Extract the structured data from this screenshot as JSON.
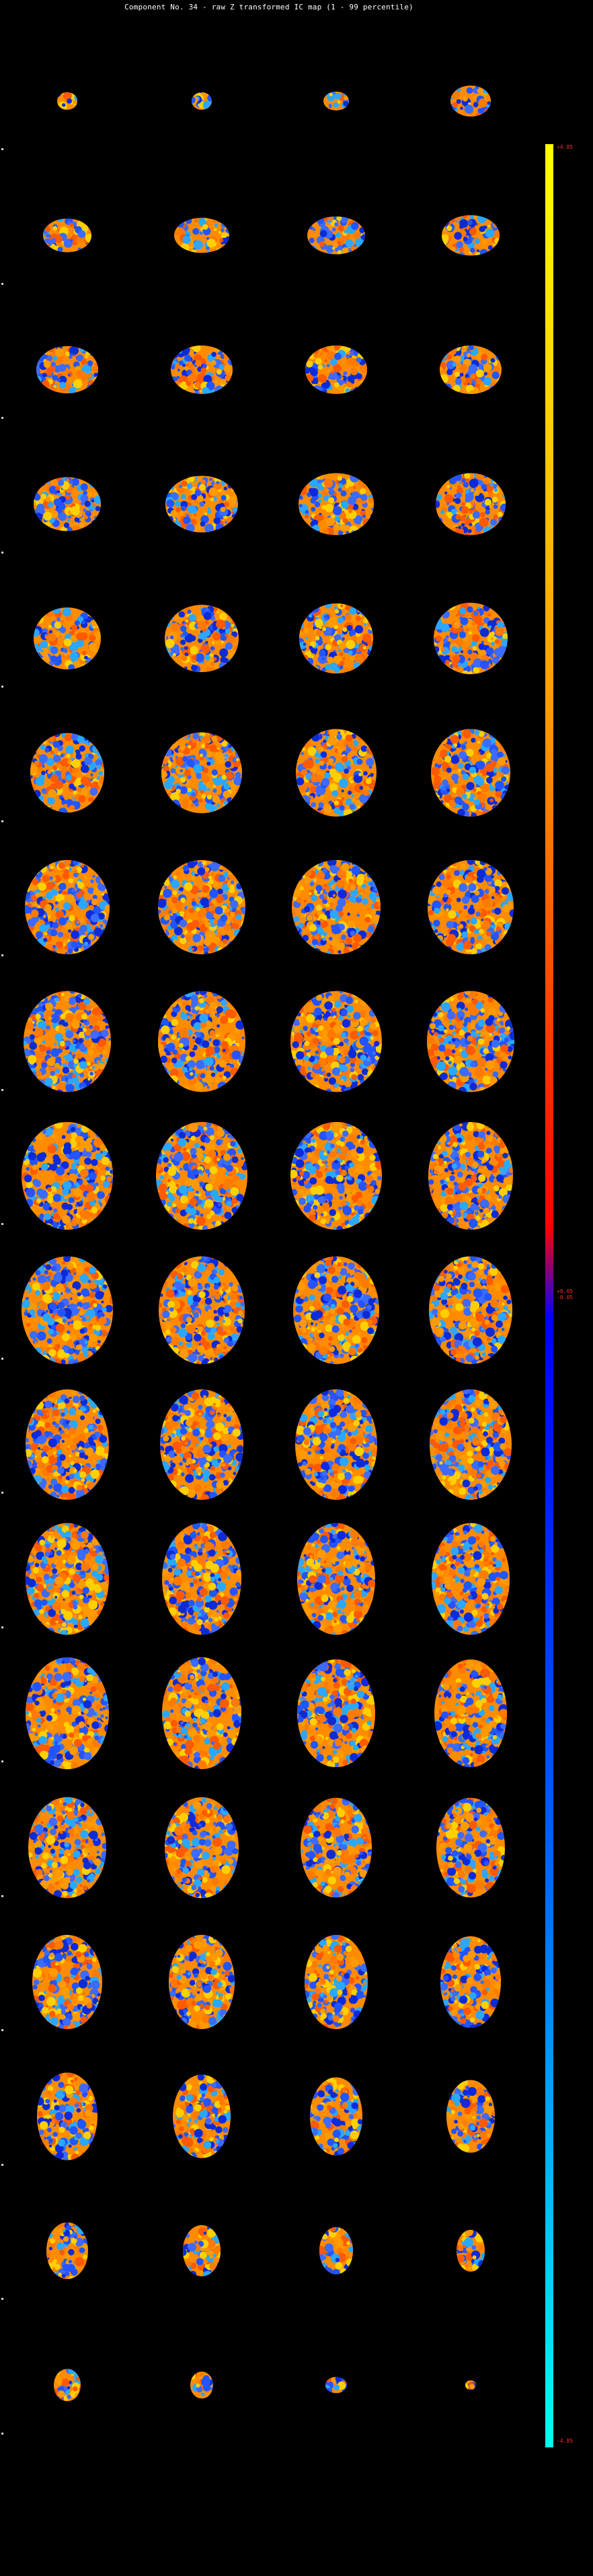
{
  "title": "Component No. 34 - raw Z transformed IC map (1 - 99 percentile)",
  "colorbar": {
    "top_label": "+4.85",
    "mid_label_upper": "+0.05",
    "mid_label_lower": "-0.05",
    "bottom_label": "-4.85",
    "colors": [
      "#ffff00",
      "#ff9900",
      "#ff0000",
      "#0000ff",
      "#0066ff",
      "#00ffee"
    ]
  },
  "grid": {
    "rows": 18,
    "columns": 4
  },
  "background": "#000000"
}
